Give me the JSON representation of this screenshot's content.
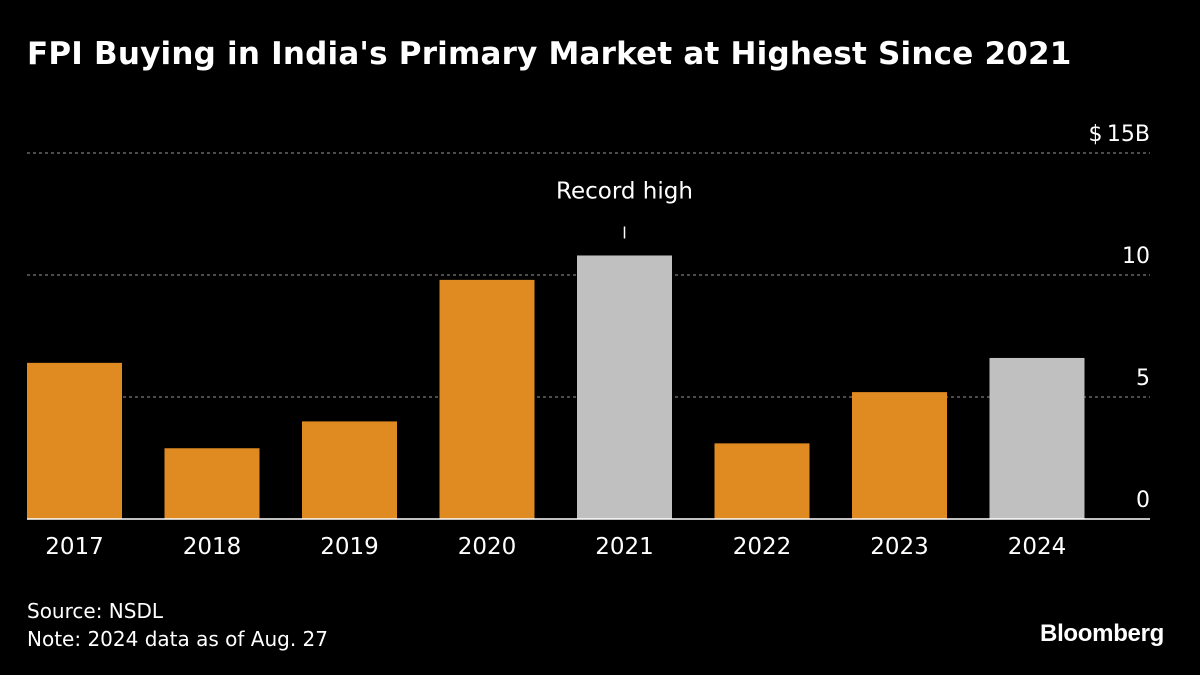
{
  "title": "FPI Buying in India's Primary Market at Highest Since 2021",
  "footer": {
    "source": "Source: NSDL",
    "note": "Note: 2024 data as of Aug. 27"
  },
  "brand": "Bloomberg",
  "colors": {
    "background": "#000000",
    "bar_orange": "#E08A22",
    "bar_gray": "#C0C0C0",
    "grid": "#7a7a7a",
    "axis": "#ffffff",
    "text": "#ffffff"
  },
  "chart_data": {
    "type": "bar",
    "title": "FPI Buying in India's Primary Market at Highest Since 2021",
    "categories": [
      "2017",
      "2018",
      "2019",
      "2020",
      "2021",
      "2022",
      "2023",
      "2024"
    ],
    "values": [
      6.4,
      2.9,
      4.0,
      9.8,
      10.8,
      3.1,
      5.2,
      6.6
    ],
    "highlight": [
      "2021",
      "2024"
    ],
    "ylim": [
      0,
      15
    ],
    "yticks": [
      0,
      5,
      10,
      15
    ],
    "ytick_labels": [
      "0",
      "5",
      "10",
      "15B"
    ],
    "y_prefix": "$",
    "y_axis_side": "right",
    "gridlines": "dashed",
    "annotation": {
      "text": "Record high",
      "category": "2021"
    },
    "xlabel": "",
    "ylabel": ""
  }
}
